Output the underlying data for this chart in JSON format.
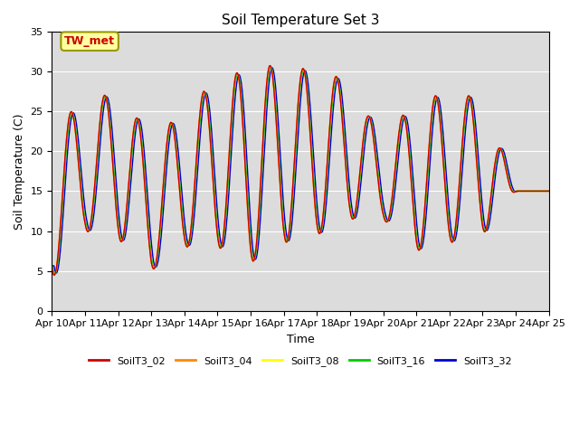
{
  "title": "Soil Temperature Set 3",
  "xlabel": "Time",
  "ylabel": "Soil Temperature (C)",
  "ylim": [
    0,
    35
  ],
  "bg_color": "#dcdcdc",
  "series": [
    {
      "label": "SoilT3_02",
      "color": "#cc0000",
      "lag": 0.0,
      "amp_factor": 1.0
    },
    {
      "label": "SoilT3_04",
      "color": "#ff8800",
      "lag": 0.01,
      "amp_factor": 0.998
    },
    {
      "label": "SoilT3_08",
      "color": "#ffff00",
      "lag": 0.02,
      "amp_factor": 0.995
    },
    {
      "label": "SoilT3_16",
      "color": "#00cc00",
      "lag": 0.04,
      "amp_factor": 0.99
    },
    {
      "label": "SoilT3_32",
      "color": "#0000cc",
      "lag": 0.08,
      "amp_factor": 0.98
    }
  ],
  "xtick_labels": [
    "Apr 10",
    "Apr 11",
    "Apr 12",
    "Apr 13",
    "Apr 14",
    "Apr 15",
    "Apr 16",
    "Apr 17",
    "Apr 18",
    "Apr 19",
    "Apr 20",
    "Apr 21",
    "Apr 22",
    "Apr 23",
    "Apr 24",
    "Apr 25"
  ],
  "annotation_text": "TW_met",
  "grid_color": "#ffffff",
  "linewidth": 1.0
}
